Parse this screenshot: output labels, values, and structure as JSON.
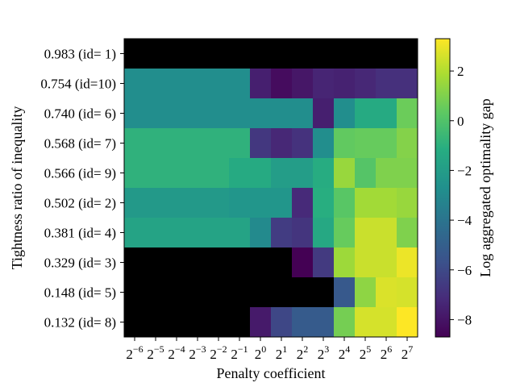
{
  "chart_data": {
    "type": "heatmap",
    "title": "",
    "xlabel": "Penalty coefficient",
    "ylabel": "Tightness ratio of inequality",
    "colorbar_label": "Log aggregated optimality gap",
    "colormap": "viridis",
    "vlim": [
      -8.7,
      3.3
    ],
    "colorbar_ticks": [
      "2",
      "0",
      "−2",
      "−4",
      "−6",
      "−8"
    ],
    "colorbar_tick_values": [
      2,
      0,
      -2,
      -4,
      -6,
      -8
    ],
    "x_exponents": [
      "−6",
      "−5",
      "−4",
      "−3",
      "−2",
      "−1",
      "0",
      "1",
      "2",
      "3",
      "4",
      "5",
      "6",
      "7"
    ],
    "x_base": "2",
    "y_labels": [
      "0.983 (id= 1)",
      "0.754 (id=10)",
      "0.740 (id= 6)",
      "0.568 (id= 7)",
      "0.566 (id= 9)",
      "0.502 (id= 2)",
      "0.381 (id= 4)",
      "0.329 (id= 3)",
      "0.148 (id= 5)",
      "0.132 (id= 8)"
    ],
    "missing_color": "#000000",
    "values": [
      [
        null,
        null,
        null,
        null,
        null,
        null,
        null,
        null,
        null,
        null,
        null,
        null,
        null,
        null
      ],
      [
        -2.8,
        -2.8,
        -2.8,
        -2.8,
        -2.8,
        -2.8,
        -7.6,
        -8.3,
        -7.9,
        -7.4,
        -7.5,
        -7.3,
        -7.0,
        -7.0
      ],
      [
        -2.8,
        -2.8,
        -2.8,
        -2.8,
        -2.8,
        -2.8,
        -2.8,
        -2.8,
        -2.8,
        -7.6,
        -2.8,
        -1.3,
        -1.3,
        0.6
      ],
      [
        -0.9,
        -0.9,
        -0.9,
        -0.9,
        -0.9,
        -0.9,
        -6.7,
        -7.3,
        -6.9,
        -2.8,
        0.4,
        0.5,
        0.5,
        1.1
      ],
      [
        -0.9,
        -0.9,
        -0.9,
        -0.9,
        -0.9,
        -1.3,
        -1.3,
        -2.0,
        -2.0,
        -1.2,
        1.5,
        0.1,
        1.0,
        1.0
      ],
      [
        -2.2,
        -2.2,
        -2.2,
        -2.2,
        -2.2,
        -2.4,
        -2.4,
        -2.4,
        -7.2,
        -1.1,
        0.2,
        1.7,
        1.7,
        1.5
      ],
      [
        -1.7,
        -1.7,
        -1.7,
        -1.7,
        -1.7,
        -1.7,
        -3.0,
        -6.5,
        -6.8,
        -1.4,
        0.5,
        2.4,
        2.4,
        1.0
      ],
      [
        null,
        null,
        null,
        null,
        null,
        null,
        null,
        null,
        -8.7,
        -6.6,
        1.6,
        2.4,
        2.4,
        3.0
      ],
      [
        null,
        null,
        null,
        null,
        null,
        null,
        null,
        null,
        null,
        null,
        -5.3,
        1.3,
        2.7,
        2.6
      ],
      [
        null,
        null,
        null,
        null,
        null,
        null,
        -7.8,
        -6.1,
        -5.2,
        -5.2,
        0.8,
        2.6,
        2.6,
        3.3
      ]
    ]
  }
}
